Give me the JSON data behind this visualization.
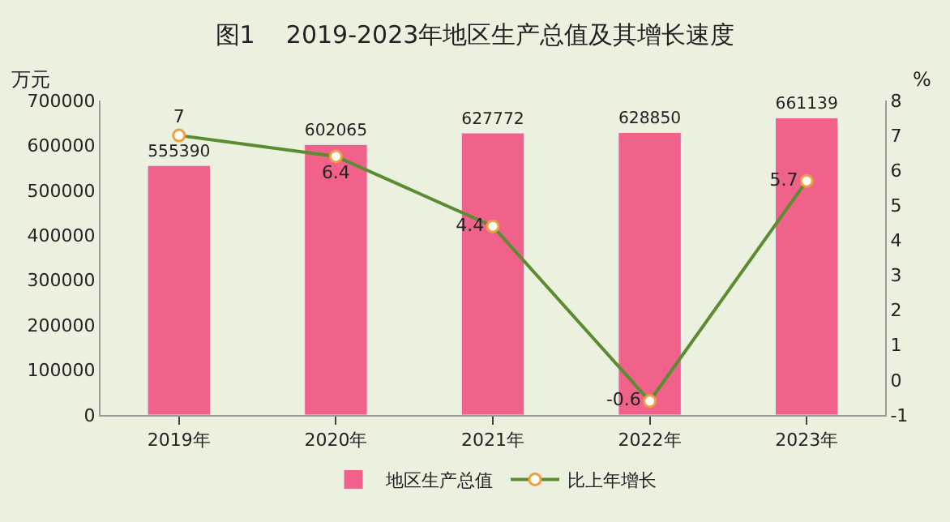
{
  "chart_data": {
    "type": "bar",
    "title": "图1    2019-2023年地区生产总值及其增长速度",
    "ylabel": "万元",
    "y2label": "%",
    "categories": [
      "2019年",
      "2020年",
      "2021年",
      "2022年",
      "2023年"
    ],
    "series": [
      {
        "name": "地区生产总值",
        "color": "#f0628a",
        "values": [
          555390,
          602065,
          627772,
          628850,
          661139
        ]
      },
      {
        "name": "比上年增长",
        "type": "line",
        "axis": "y2",
        "color": "#5b8c32",
        "marker": "circle",
        "values": [
          7,
          6.4,
          4.4,
          -0.6,
          5.7
        ]
      }
    ],
    "ylim": [
      0,
      700000
    ],
    "yticks": [
      0,
      100000,
      200000,
      300000,
      400000,
      500000,
      600000,
      700000
    ],
    "y2lim": [
      -1,
      8
    ],
    "y2ticks": [
      -1,
      0,
      1,
      2,
      3,
      4,
      5,
      6,
      7,
      8
    ],
    "data_labels": true,
    "legend": "bottom",
    "grid": false
  }
}
